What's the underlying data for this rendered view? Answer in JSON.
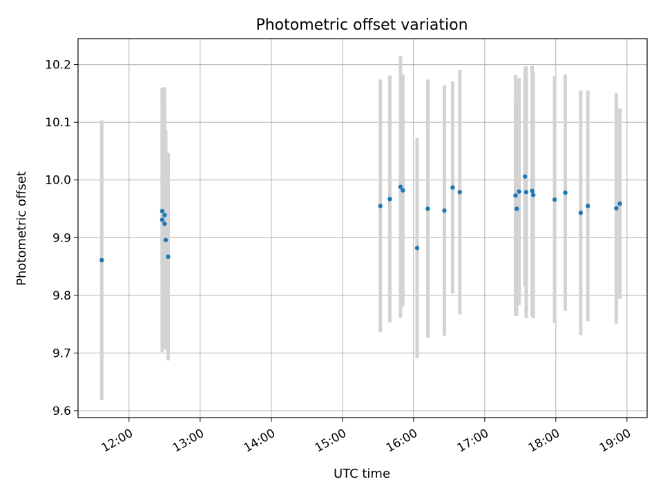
{
  "chart_data": {
    "type": "scatter",
    "title": "Photometric offset variation",
    "xlabel": "UTC time",
    "ylabel": "Photometric offset",
    "x_unit": "hours UTC",
    "xlim": [
      "11:17",
      "19:17"
    ],
    "ylim": [
      9.588,
      10.245
    ],
    "grid": true,
    "x_ticks": [
      {
        "time": "12:00",
        "label": "12:00"
      },
      {
        "time": "13:00",
        "label": "13:00"
      },
      {
        "time": "14:00",
        "label": "14:00"
      },
      {
        "time": "15:00",
        "label": "15:00"
      },
      {
        "time": "16:00",
        "label": "16:00"
      },
      {
        "time": "17:00",
        "label": "17:00"
      },
      {
        "time": "18:00",
        "label": "18:00"
      },
      {
        "time": "19:00",
        "label": "19:00"
      }
    ],
    "y_ticks": [
      {
        "value": 9.6,
        "label": "9.6"
      },
      {
        "value": 9.7,
        "label": "9.7"
      },
      {
        "value": 9.8,
        "label": "9.8"
      },
      {
        "value": 9.9,
        "label": "9.9"
      },
      {
        "value": 10.0,
        "label": "10.0"
      },
      {
        "value": 10.1,
        "label": "10.1"
      },
      {
        "value": 10.2,
        "label": "10.2"
      }
    ],
    "point_color": "#1f77b4",
    "errorbar_color": "#d3d3d3",
    "points": [
      {
        "time": "11:37",
        "y": 9.861,
        "err": 0.242
      },
      {
        "time": "12:28",
        "y": 9.946,
        "err": 0.211
      },
      {
        "time": "12:28",
        "y": 9.931,
        "err": 0.229
      },
      {
        "time": "12:30",
        "y": 9.939,
        "err": 0.222
      },
      {
        "time": "12:30",
        "y": 9.924,
        "err": 0.216
      },
      {
        "time": "12:31",
        "y": 9.896,
        "err": 0.19
      },
      {
        "time": "12:33",
        "y": 9.867,
        "err": 0.18
      },
      {
        "time": "15:32",
        "y": 9.955,
        "err": 0.219
      },
      {
        "time": "15:40",
        "y": 9.967,
        "err": 0.214
      },
      {
        "time": "15:49",
        "y": 9.988,
        "err": 0.227
      },
      {
        "time": "15:51",
        "y": 9.982,
        "err": 0.201
      },
      {
        "time": "16:03",
        "y": 9.882,
        "err": 0.191
      },
      {
        "time": "16:12",
        "y": 9.95,
        "err": 0.224
      },
      {
        "time": "16:26",
        "y": 9.947,
        "err": 0.217
      },
      {
        "time": "16:33",
        "y": 9.987,
        "err": 0.184
      },
      {
        "time": "16:39",
        "y": 9.979,
        "err": 0.212
      },
      {
        "time": "17:26",
        "y": 9.973,
        "err": 0.209
      },
      {
        "time": "17:27",
        "y": 9.95,
        "err": 0.185
      },
      {
        "time": "17:29",
        "y": 9.98,
        "err": 0.197
      },
      {
        "time": "17:34",
        "y": 10.006,
        "err": 0.19
      },
      {
        "time": "17:35",
        "y": 9.979,
        "err": 0.218
      },
      {
        "time": "17:40",
        "y": 9.981,
        "err": 0.217
      },
      {
        "time": "17:41",
        "y": 9.974,
        "err": 0.214
      },
      {
        "time": "17:59",
        "y": 9.966,
        "err": 0.214
      },
      {
        "time": "18:08",
        "y": 9.978,
        "err": 0.205
      },
      {
        "time": "18:21",
        "y": 9.943,
        "err": 0.212
      },
      {
        "time": "18:27",
        "y": 9.955,
        "err": 0.2
      },
      {
        "time": "18:51",
        "y": 9.951,
        "err": 0.2
      },
      {
        "time": "18:54",
        "y": 9.959,
        "err": 0.165
      }
    ]
  }
}
